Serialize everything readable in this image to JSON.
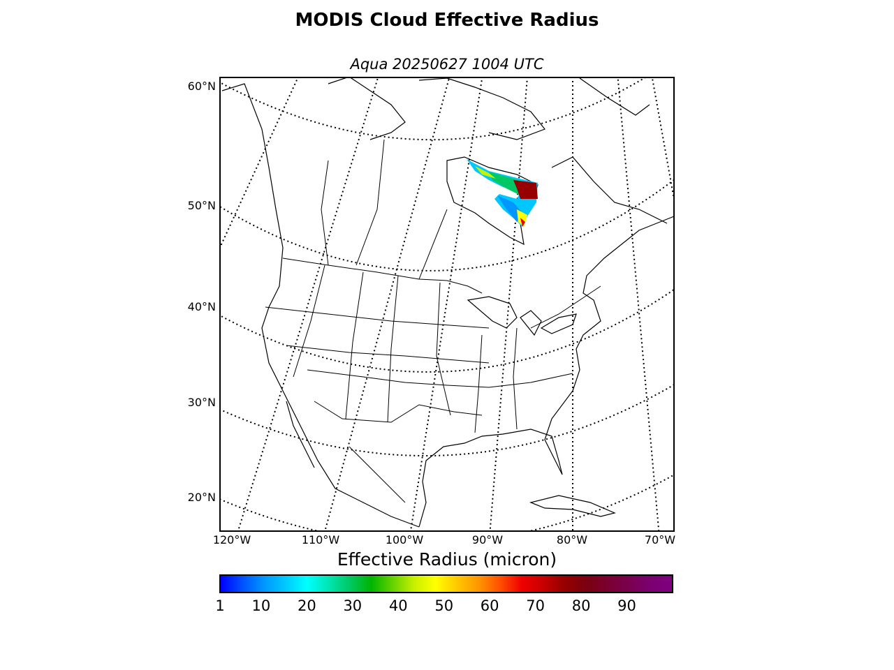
{
  "title": "MODIS Cloud Effective Radius",
  "subtitle": "Aqua 20250627 1004 UTC",
  "lat_labels": [
    "60°N",
    "50°N",
    "40°N",
    "30°N",
    "20°N"
  ],
  "lon_labels": [
    "120°W",
    "110°W",
    "100°W",
    "90°W",
    "80°W",
    "70°W"
  ],
  "colorbar": {
    "title": "Effective Radius (micron)",
    "ticks": [
      "1",
      "10",
      "20",
      "30",
      "40",
      "50",
      "60",
      "70",
      "80",
      "90"
    ],
    "range": [
      1,
      100
    ],
    "colors": [
      "#0000ff",
      "#0050ff",
      "#0096ff",
      "#00c8ff",
      "#00ffff",
      "#00e6b4",
      "#00c864",
      "#00b400",
      "#64d200",
      "#c8f000",
      "#ffff00",
      "#ffc800",
      "#ff9600",
      "#ff5000",
      "#f00000",
      "#c80000",
      "#960000",
      "#7a0010",
      "#7a0030",
      "#7a0050",
      "#7a0070",
      "#800080"
    ]
  },
  "map": {
    "projection": "lambert-conformal",
    "region": "North America",
    "colors": {
      "coast": "#000000",
      "grid": "#000000",
      "frame": "#000000"
    }
  }
}
